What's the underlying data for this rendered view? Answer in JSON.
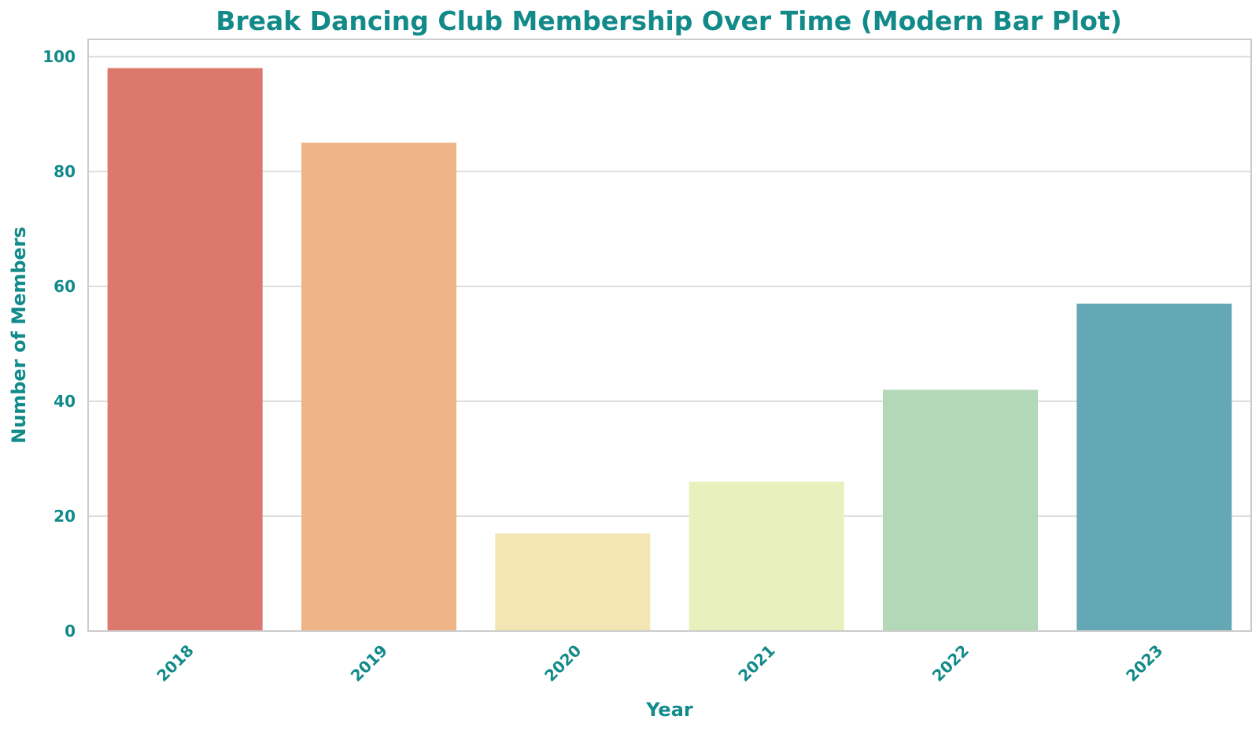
{
  "chart_data": {
    "type": "bar",
    "title": "Break Dancing Club Membership Over Time (Modern Bar Plot)",
    "xlabel": "Year",
    "ylabel": "Number of Members",
    "categories": [
      "2018",
      "2019",
      "2020",
      "2021",
      "2022",
      "2023"
    ],
    "values": [
      98,
      85,
      17,
      26,
      42,
      57
    ],
    "colors": [
      "#dd786f",
      "#efb586",
      "#f4e6b4",
      "#e8f0be",
      "#b3d8b8",
      "#63a8b4"
    ],
    "ylim": [
      0,
      103
    ],
    "yticks": [
      0,
      20,
      40,
      60,
      80,
      100
    ],
    "grid": true,
    "legend": "none",
    "text_color": "#128a8a",
    "grid_color": "#dddddd",
    "spine_color": "#cccccc"
  }
}
